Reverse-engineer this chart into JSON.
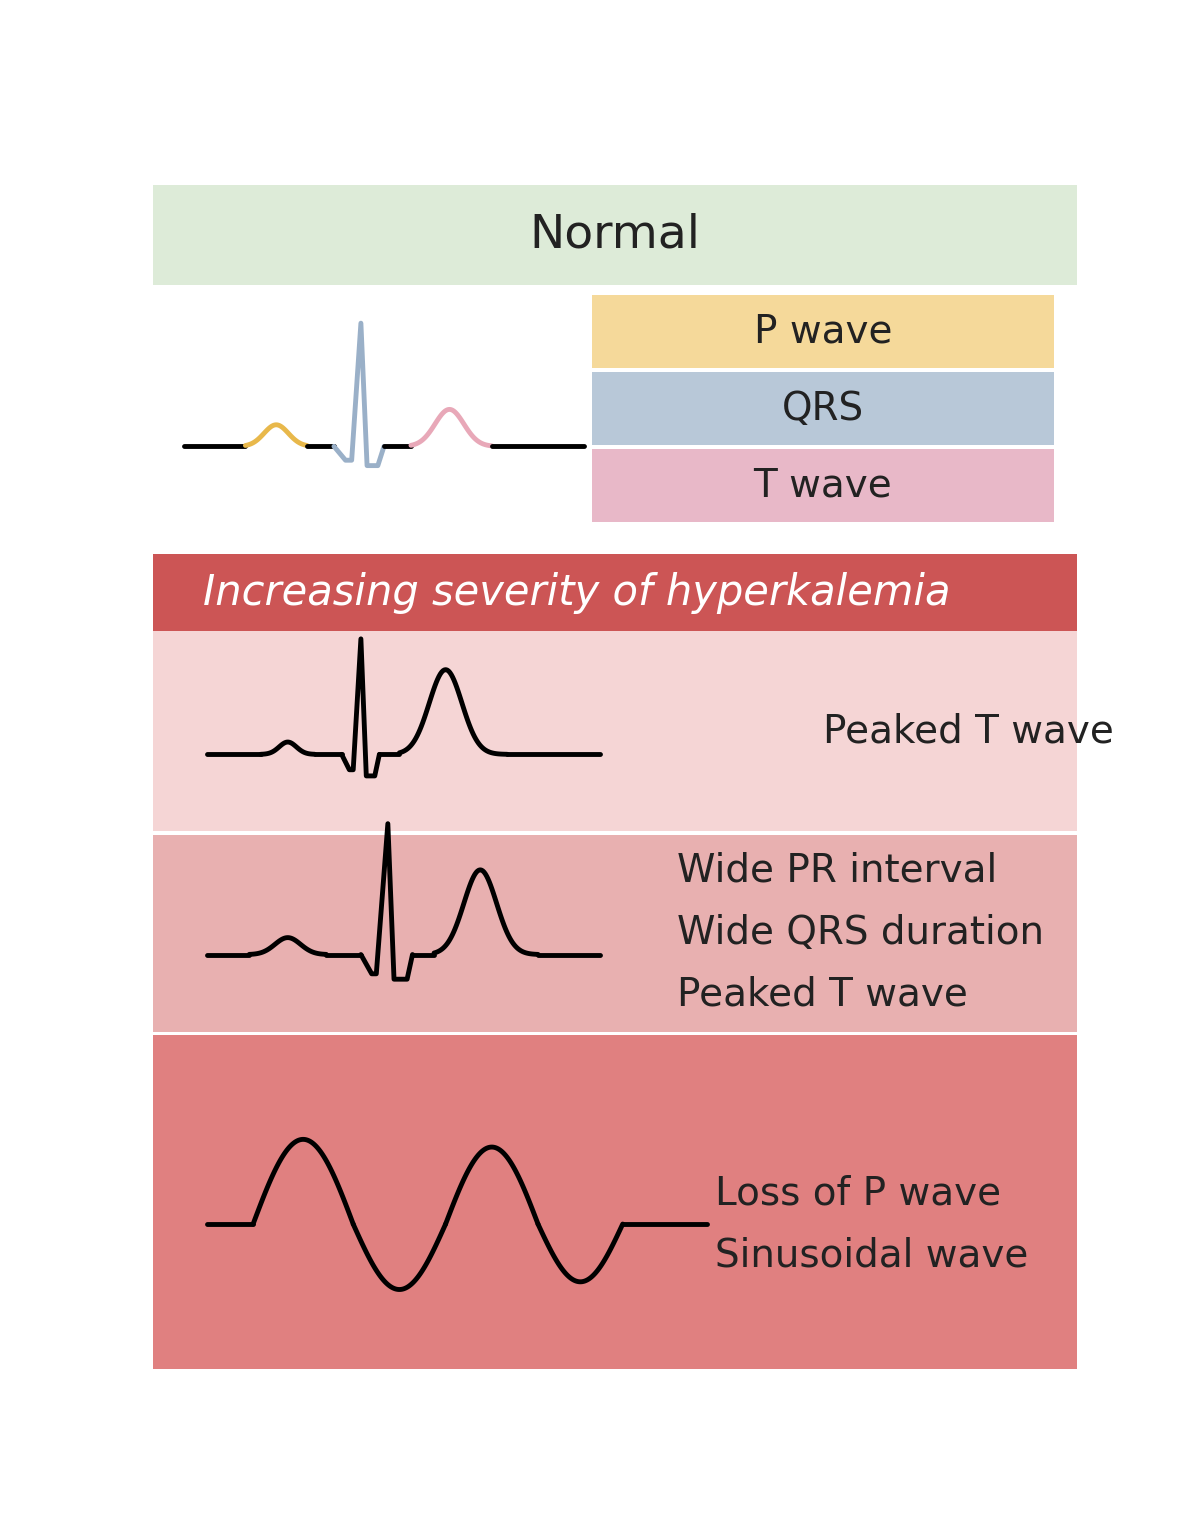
{
  "bg_color": "#ffffff",
  "normal_bg": "#ddebd8",
  "normal_text": "Normal",
  "normal_text_color": "#222222",
  "p_wave_bg": "#f5d99a",
  "p_wave_text": "P wave",
  "qrs_bg": "#b8c8d8",
  "qrs_text": "QRS",
  "t_wave_bg": "#e8b8c8",
  "t_wave_text": "T wave",
  "severity_bg": "#cc5555",
  "severity_text": "Increasing severity of hyperkalemia",
  "severity_text_color": "#ffffff",
  "peaked_bg": "#f5d5d5",
  "peaked_text": "Peaked T wave",
  "wide_bg": "#e8b0b0",
  "wide_text": "Wide PR interval\nWide QRS duration\nPeaked T wave",
  "sinus_bg": "#e08080",
  "sinus_text": "Loss of P wave\nSinusoidal wave",
  "label_text_color": "#222222",
  "normal_p_color": "#e8b84b",
  "normal_qrs_color": "#9ab0c8",
  "normal_t_color": "#e8a8b8"
}
